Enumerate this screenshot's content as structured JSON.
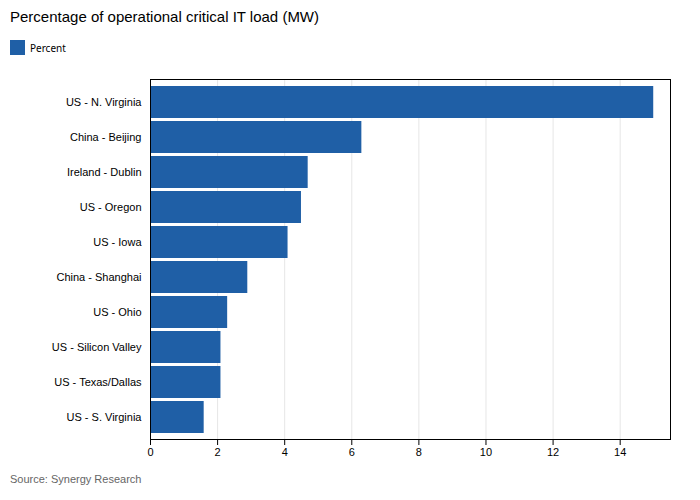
{
  "chart_data": {
    "type": "bar",
    "orientation": "horizontal",
    "title": "Percentage of operational critical IT load (MW)",
    "caption": "Source: Synergy Research",
    "categories": [
      "US - S. Virginia",
      "US - Texas/Dallas",
      "US - Silicon Valley",
      "US - Ohio",
      "China - Shanghai",
      "US - Iowa",
      "US - Oregon",
      "Ireland - Dublin",
      "China - Beijing",
      "US - N. Virginia"
    ],
    "series": [
      {
        "name": "Percent",
        "color": "#1f5fa6",
        "values": [
          1.6,
          2.1,
          2.1,
          2.3,
          2.9,
          4.1,
          4.5,
          4.7,
          6.3,
          15.0
        ]
      }
    ],
    "xlim": [
      0,
      15.5
    ],
    "xticks": [
      0,
      2,
      4,
      6,
      8,
      10,
      12,
      14
    ],
    "grid": true,
    "legend": "upper left"
  }
}
